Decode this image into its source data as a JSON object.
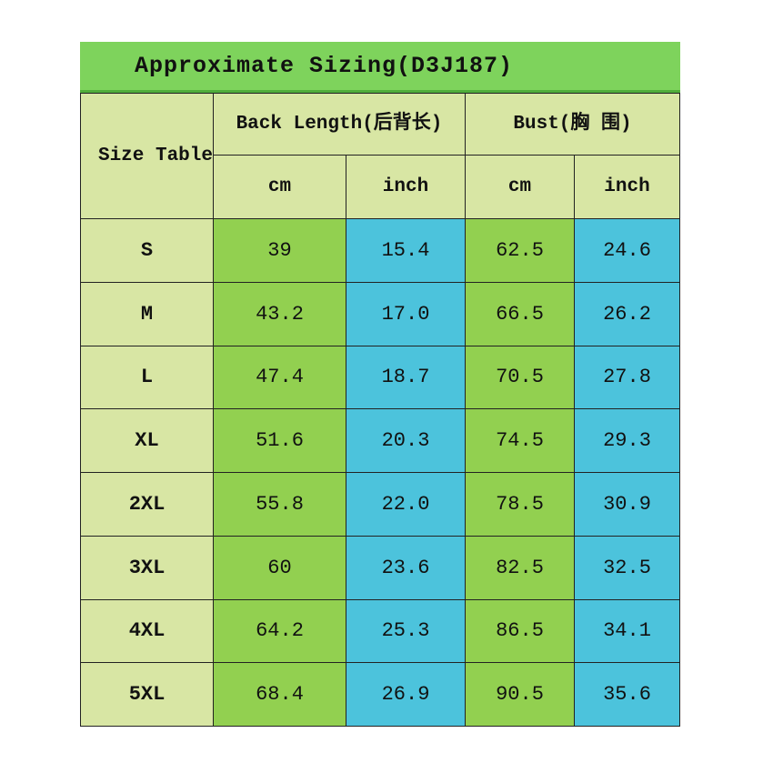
{
  "title": "Approximate Sizing(D3J187)",
  "header": {
    "size_table": "Size Table",
    "back_length": "Back Length(后背长)",
    "bust": "Bust(胸 围)",
    "units": [
      "cm",
      "inch",
      "cm",
      "inch"
    ]
  },
  "rows": [
    [
      "S",
      "39",
      "15.4",
      "62.5",
      "24.6"
    ],
    [
      "M",
      "43.2",
      "17.0",
      "66.5",
      "26.2"
    ],
    [
      "L",
      "47.4",
      "18.7",
      "70.5",
      "27.8"
    ],
    [
      "XL",
      "51.6",
      "20.3",
      "74.5",
      "29.3"
    ],
    [
      "2XL",
      "55.8",
      "22.0",
      "78.5",
      "30.9"
    ],
    [
      "3XL",
      "60",
      "23.6",
      "82.5",
      "32.5"
    ],
    [
      "4XL",
      "64.2",
      "25.3",
      "86.5",
      "34.1"
    ],
    [
      "5XL",
      "68.4",
      "26.9",
      "90.5",
      "35.6"
    ]
  ]
}
